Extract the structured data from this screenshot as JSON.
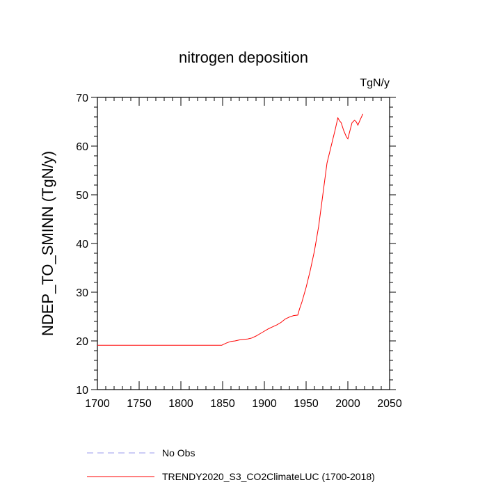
{
  "chart_data": {
    "type": "line",
    "title": "nitrogen deposition",
    "units_label": "TgN/y",
    "xlabel": "",
    "ylabel": "NDEP_TO_SMINN  (TgN/y)",
    "xlim": [
      1700,
      2050
    ],
    "ylim": [
      10,
      70
    ],
    "x_ticks": [
      1700,
      1750,
      1800,
      1850,
      1900,
      1950,
      2000,
      2050
    ],
    "y_ticks": [
      10,
      20,
      30,
      40,
      50,
      60,
      70
    ],
    "grid": false,
    "legend_position": "bottom",
    "legend": [
      {
        "name": "No Obs",
        "color": "#9a9aee",
        "style": "dashed"
      },
      {
        "name": "TRENDY2020_S3_CO2ClimateLUC (1700-2018)",
        "color": "#ff0000",
        "style": "solid"
      }
    ],
    "series": [
      {
        "name": "TRENDY2020_S3_CO2ClimateLUC (1700-2018)",
        "color": "#ff0000",
        "x": [
          1700,
          1750,
          1800,
          1849,
          1850,
          1855,
          1860,
          1865,
          1870,
          1875,
          1880,
          1885,
          1890,
          1895,
          1900,
          1905,
          1910,
          1915,
          1920,
          1925,
          1930,
          1935,
          1940,
          1942,
          1945,
          1950,
          1955,
          1960,
          1965,
          1970,
          1975,
          1980,
          1985,
          1988,
          1990,
          1992,
          1995,
          1998,
          2000,
          2003,
          2005,
          2008,
          2010,
          2012,
          2015,
          2018
        ],
        "y": [
          19.1,
          19.1,
          19.1,
          19.1,
          19.2,
          19.6,
          19.9,
          20.0,
          20.2,
          20.3,
          20.4,
          20.6,
          21.0,
          21.5,
          22.0,
          22.5,
          22.9,
          23.3,
          23.8,
          24.5,
          24.9,
          25.2,
          25.3,
          26.5,
          28.0,
          31.0,
          34.5,
          38.5,
          43.5,
          50.0,
          56.5,
          60.0,
          63.5,
          65.8,
          65.2,
          64.8,
          63.2,
          62.0,
          61.5,
          63.5,
          64.8,
          65.3,
          65.0,
          64.3,
          65.5,
          66.6
        ]
      }
    ]
  }
}
